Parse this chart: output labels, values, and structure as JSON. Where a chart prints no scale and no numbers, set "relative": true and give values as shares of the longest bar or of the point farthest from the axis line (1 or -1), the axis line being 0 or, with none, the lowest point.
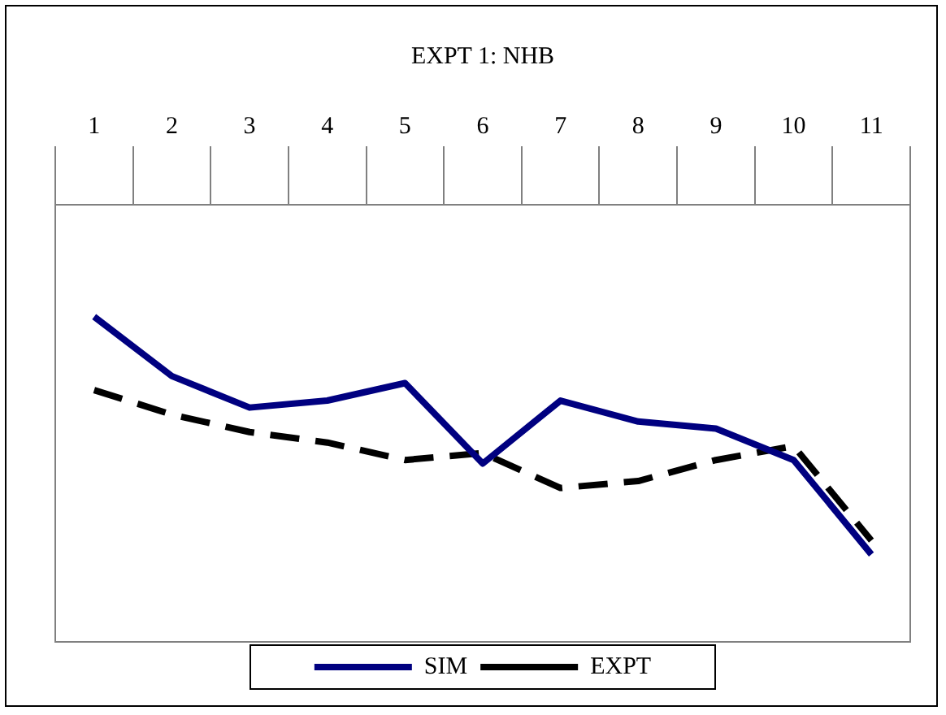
{
  "chart_data": {
    "type": "line",
    "title": "EXPT 1: NHB",
    "relative": true,
    "categories": [
      "1",
      "2",
      "3",
      "4",
      "5",
      "6",
      "7",
      "8",
      "9",
      "10",
      "11"
    ],
    "series": [
      {
        "name": "SIM",
        "color": "#000080",
        "line_style": "solid",
        "values": [
          -0.32,
          -0.49,
          -0.58,
          -0.56,
          -0.51,
          -0.74,
          -0.56,
          -0.62,
          -0.64,
          -0.73,
          -1
        ]
      },
      {
        "name": "EXPT",
        "color": "#000000",
        "line_style": "dashed",
        "values": [
          -0.53,
          -0.6,
          -0.65,
          -0.68,
          -0.73,
          -0.71,
          -0.81,
          -0.79,
          -0.73,
          -0.69,
          -0.96
        ]
      }
    ],
    "marker": "none",
    "grid": false,
    "legend": "bottom"
  }
}
